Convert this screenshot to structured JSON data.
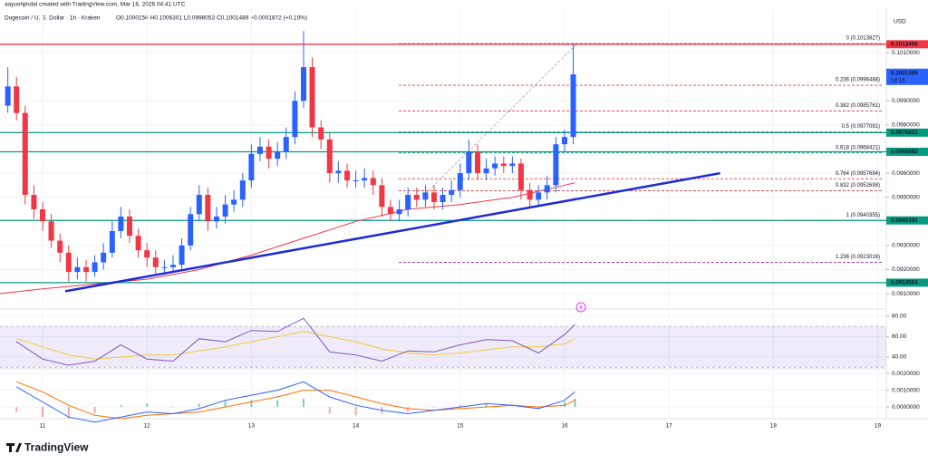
{
  "header": {
    "credit": "aayushjindal created with TradingView.com, Mar 16, 2026 04:41 UTC",
    "symbol": "Dogecoin / U. S. Dollar · 1h · Kraken",
    "ohlc": "O0.1000156 H0.1006301 L0.0998053 C0.1001489 +0.0001872 (+0.19%)"
  },
  "brand": "TradingView",
  "chart_data": [
    {
      "type": "candlestick",
      "axis_unit": "USD",
      "up_color": "#2962ff",
      "down_color": "#f23645",
      "grid": true,
      "xlim": [
        10.592,
        19.082
      ],
      "xticks": [
        11,
        12,
        13,
        14,
        15,
        16,
        17,
        18,
        19
      ],
      "ylim": [
        0.0904,
        0.10281
      ],
      "yticks": [
        {
          "value": 0.101,
          "label": "0.1010000"
        },
        {
          "value": 0.099,
          "label": "0.0990000"
        },
        {
          "value": 0.098,
          "label": "0.0980000"
        },
        {
          "value": 0.096,
          "label": "0.0960000"
        },
        {
          "value": 0.095,
          "label": "0.0950000"
        },
        {
          "value": 0.093,
          "label": "0.0930000"
        },
        {
          "value": 0.092,
          "label": "0.0920000"
        },
        {
          "value": 0.091,
          "label": "0.0910000"
        }
      ],
      "x": [
        10.667,
        10.75,
        10.833,
        10.917,
        11,
        11.083,
        11.167,
        11.25,
        11.333,
        11.417,
        11.5,
        11.583,
        11.667,
        11.75,
        11.833,
        11.917,
        12,
        12.083,
        12.167,
        12.25,
        12.333,
        12.417,
        12.5,
        12.583,
        12.667,
        12.75,
        12.833,
        12.917,
        13,
        13.083,
        13.167,
        13.25,
        13.333,
        13.417,
        13.5,
        13.583,
        13.667,
        13.75,
        13.833,
        13.917,
        14,
        14.083,
        14.167,
        14.25,
        14.333,
        14.417,
        14.5,
        14.583,
        14.667,
        14.75,
        14.833,
        14.917,
        15,
        15.083,
        15.167,
        15.25,
        15.333,
        15.417,
        15.5,
        15.583,
        15.667,
        15.75,
        15.833,
        15.917,
        16,
        16.083
      ],
      "open": [
        0.0988,
        0.0996,
        0.0985,
        0.0951,
        0.0945,
        0.094,
        0.0932,
        0.0927,
        0.0919,
        0.0921,
        0.0919,
        0.0923,
        0.0927,
        0.0936,
        0.0942,
        0.0934,
        0.0928,
        0.0925,
        0.0921,
        0.0921,
        0.0922,
        0.093,
        0.0943,
        0.0951,
        0.094,
        0.0942,
        0.0947,
        0.0949,
        0.0957,
        0.0968,
        0.0971,
        0.0966,
        0.0969,
        0.0975,
        0.099,
        0.1004,
        0.0979,
        0.0974,
        0.096,
        0.0961,
        0.0957,
        0.0957,
        0.0958,
        0.0955,
        0.0946,
        0.0943,
        0.0945,
        0.0951,
        0.0949,
        0.0952,
        0.0948,
        0.0951,
        0.0953,
        0.096,
        0.0969,
        0.096,
        0.0962,
        0.0964,
        0.0963,
        0.0964,
        0.0953,
        0.0949,
        0.0952,
        0.0955,
        0.0972,
        0.0975
      ],
      "high": [
        0.1004,
        0.1,
        0.0988,
        0.0955,
        0.0948,
        0.0943,
        0.0935,
        0.093,
        0.0925,
        0.0924,
        0.0926,
        0.0931,
        0.094,
        0.0946,
        0.0945,
        0.0937,
        0.0931,
        0.0928,
        0.0924,
        0.0926,
        0.0933,
        0.0946,
        0.0955,
        0.0954,
        0.0946,
        0.0951,
        0.0953,
        0.096,
        0.0972,
        0.0975,
        0.0974,
        0.0973,
        0.0979,
        0.0994,
        0.1019,
        0.1008,
        0.0982,
        0.0977,
        0.0965,
        0.0964,
        0.0961,
        0.0962,
        0.0961,
        0.0958,
        0.0949,
        0.0949,
        0.0954,
        0.0954,
        0.0955,
        0.0955,
        0.0954,
        0.0957,
        0.0964,
        0.0974,
        0.0972,
        0.0966,
        0.0967,
        0.0967,
        0.0967,
        0.0966,
        0.0956,
        0.0955,
        0.0959,
        0.0975,
        0.0978,
        0.1014
      ],
      "low": [
        0.0985,
        0.0982,
        0.0947,
        0.0941,
        0.0936,
        0.0929,
        0.0923,
        0.0915,
        0.0916,
        0.0915,
        0.0917,
        0.092,
        0.0925,
        0.0933,
        0.0931,
        0.0925,
        0.0921,
        0.0918,
        0.0918,
        0.0919,
        0.092,
        0.0928,
        0.094,
        0.0936,
        0.0937,
        0.0939,
        0.0944,
        0.0946,
        0.0954,
        0.0965,
        0.0962,
        0.0963,
        0.0966,
        0.0972,
        0.0987,
        0.0975,
        0.097,
        0.0956,
        0.0956,
        0.0954,
        0.0954,
        0.0954,
        0.0951,
        0.0942,
        0.094,
        0.094,
        0.0942,
        0.0946,
        0.0946,
        0.0945,
        0.0945,
        0.0948,
        0.095,
        0.0957,
        0.0957,
        0.0957,
        0.0959,
        0.096,
        0.096,
        0.0949,
        0.0946,
        0.0946,
        0.0949,
        0.0952,
        0.0969,
        0.0972
      ],
      "close": [
        0.0996,
        0.0985,
        0.0951,
        0.0945,
        0.094,
        0.0932,
        0.0927,
        0.0919,
        0.0921,
        0.0919,
        0.0923,
        0.0927,
        0.0936,
        0.0942,
        0.0934,
        0.0928,
        0.0925,
        0.0921,
        0.0921,
        0.0922,
        0.093,
        0.0943,
        0.0951,
        0.094,
        0.0942,
        0.0947,
        0.0949,
        0.0957,
        0.0968,
        0.0971,
        0.0966,
        0.0969,
        0.0975,
        0.099,
        0.1004,
        0.0979,
        0.0974,
        0.096,
        0.0961,
        0.0957,
        0.0957,
        0.0958,
        0.0955,
        0.0946,
        0.0943,
        0.0945,
        0.0951,
        0.0949,
        0.0952,
        0.0948,
        0.0951,
        0.0953,
        0.096,
        0.0969,
        0.096,
        0.0962,
        0.0964,
        0.0963,
        0.0964,
        0.0953,
        0.0949,
        0.0952,
        0.0955,
        0.0972,
        0.0975,
        0.1001
      ],
      "ema": {
        "color": "#f23645",
        "x": [
          10.592,
          11,
          11.5,
          12,
          12.5,
          13,
          13.5,
          14,
          14.5,
          15,
          15.5,
          16.1
        ],
        "values": [
          0.091,
          0.0912,
          0.0914,
          0.0916,
          0.092,
          0.0926,
          0.0933,
          0.094,
          0.0945,
          0.0947,
          0.095,
          0.0956
        ]
      },
      "trendline": {
        "color": "#1e2bd6",
        "x": [
          11.217,
          17.49
        ],
        "values": [
          0.0911,
          0.096
        ]
      },
      "levels": [
        {
          "value": 0.1013496,
          "color": "#f23645"
        },
        {
          "value": 0.0976823,
          "color": "#089981"
        },
        {
          "value": 0.0968882,
          "color": "#089981"
        },
        {
          "value": 0.0940391,
          "color": "#089981"
        },
        {
          "value": 0.0914564,
          "color": "#089981"
        }
      ],
      "last": {
        "value": 0.1001489,
        "countdown": "18:16",
        "color": "#2962ff"
      },
      "fib": [
        {
          "value": 0.1013827,
          "label": "0 (0.1013827)",
          "color": "#787b86"
        },
        {
          "value": 0.0996488,
          "label": "0.236 (0.0996488)",
          "color": "#f23645"
        },
        {
          "value": 0.0985761,
          "label": "0.382 (0.0985761)",
          "color": "#f23645"
        },
        {
          "value": 0.0977091,
          "label": "0.5 (0.0977091)",
          "color": "#4c525e"
        },
        {
          "value": 0.0968421,
          "label": "0.618 (0.0968421)",
          "color": "#089981"
        },
        {
          "value": 0.0957694,
          "label": "0.764 (0.0957694)",
          "color": "#d32f2f"
        },
        {
          "value": 0.0952698,
          "label": "0.832 (0.0952698)",
          "color": "#b71c1c"
        },
        {
          "value": 0.0940355,
          "label": "1 (0.0940355)",
          "color": "#2962ff"
        },
        {
          "value": 0.0923016,
          "label": "1.236 (0.0923016)",
          "color": "#9c27b0"
        }
      ]
    },
    {
      "type": "rsi",
      "color": "#7e57c2",
      "ma_color": "#f7c544",
      "band": [
        30,
        70
      ],
      "band_color": "#7e57c2",
      "ylim": [
        28.4,
        85.3
      ],
      "yticks": [
        {
          "value": 80,
          "label": "80.00"
        },
        {
          "value": 60,
          "label": "60.00"
        },
        {
          "value": 40,
          "label": "40.00"
        }
      ],
      "x": [
        10.75,
        11,
        11.25,
        11.5,
        11.75,
        12,
        12.25,
        12.5,
        12.75,
        13,
        13.25,
        13.5,
        13.75,
        14,
        14.25,
        14.5,
        14.75,
        15,
        15.25,
        15.5,
        15.75,
        16,
        16.1
      ],
      "values": [
        55,
        38,
        32,
        36,
        52,
        38,
        36,
        58,
        55,
        66,
        65,
        78,
        45,
        42,
        36,
        46,
        45,
        52,
        57,
        56,
        44,
        62,
        72
      ],
      "ma": [
        58,
        50,
        42,
        38,
        40,
        42,
        42,
        46,
        50,
        55,
        60,
        65,
        60,
        55,
        48,
        44,
        42,
        44,
        47,
        50,
        50,
        53,
        58
      ]
    },
    {
      "type": "macd",
      "macd_color": "#2962ff",
      "signal_color": "#ff6d00",
      "pos_color": "#80cbc4",
      "neg_color": "#f7a6a6",
      "ylim": [
        -0.0007,
        0.00222
      ],
      "yticks": [
        {
          "value": 0.002,
          "label": "0.0020000"
        },
        {
          "value": 0.001,
          "label": "0.0010000"
        },
        {
          "value": 0,
          "label": "0.0000000"
        }
      ],
      "x": [
        10.75,
        11,
        11.25,
        11.5,
        11.75,
        12,
        12.25,
        12.5,
        12.75,
        13,
        13.25,
        13.5,
        13.75,
        14,
        14.25,
        14.5,
        14.75,
        15,
        15.25,
        15.5,
        15.75,
        16,
        16.1
      ],
      "macd": [
        0.0012,
        0.0003,
        -0.0006,
        -0.0009,
        -0.0006,
        -0.0003,
        -0.0004,
        -0.0001,
        0.0004,
        0.0007,
        0.001,
        0.0015,
        0.0006,
        0.0001,
        -0.0002,
        -0.0004,
        -0.0002,
        0.0,
        0.0002,
        0.0001,
        -0.0001,
        0.0004,
        0.0009
      ],
      "signal": [
        0.0015,
        0.0009,
        0.0001,
        -0.0005,
        -0.0007,
        -0.0005,
        -0.0004,
        -0.0003,
        0.0,
        0.0003,
        0.0006,
        0.001,
        0.001,
        0.0006,
        0.0002,
        -0.0001,
        -0.0002,
        -0.0001,
        0.0,
        0.0001,
        0.0,
        0.0001,
        0.0004
      ],
      "histogram": [
        -0.0003,
        -0.0006,
        -0.0007,
        -0.0004,
        0.0001,
        0.0002,
        0.0,
        0.0002,
        0.0004,
        0.0004,
        0.0004,
        0.0005,
        -0.0004,
        -0.0005,
        -0.0004,
        -0.0003,
        0.0,
        0.0001,
        0.0002,
        0.0,
        -0.0001,
        0.0003,
        0.0005
      ]
    }
  ]
}
